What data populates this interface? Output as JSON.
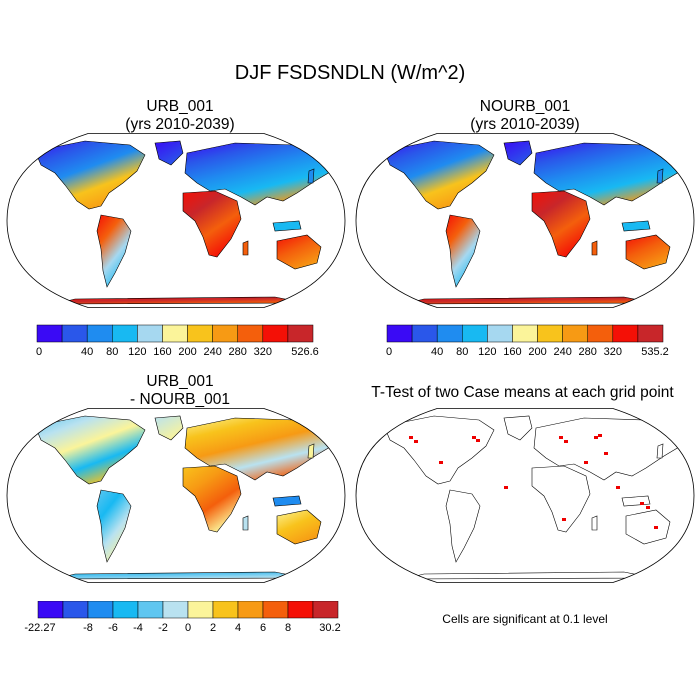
{
  "figure": {
    "title": "DJF FSDSNDLN (W/m^2)",
    "significance_note": "Cells are significant at 0.1 level"
  },
  "chart_data": [
    {
      "type": "heatmap",
      "projection": "robinson",
      "title_line1": "URB_001",
      "title_line2": "(yrs 2010-2039)",
      "variable": "FSDSNDLN",
      "units": "W/m^2",
      "colorbar": {
        "tick_labels": [
          "0",
          "40",
          "80",
          "120",
          "160",
          "200",
          "240",
          "280",
          "320",
          "526.6"
        ],
        "colors": [
          "#3a0af5",
          "#2a57ea",
          "#1f8cf0",
          "#18b9f2",
          "#a6d8f0",
          "#fbf49a",
          "#f8c31c",
          "#f79a14",
          "#f45f0c",
          "#f41006",
          "#c8262a"
        ]
      }
    },
    {
      "type": "heatmap",
      "projection": "robinson",
      "title_line1": "NOURB_001",
      "title_line2": "(yrs 2010-2039)",
      "variable": "FSDSNDLN",
      "units": "W/m^2",
      "colorbar": {
        "tick_labels": [
          "0",
          "40",
          "80",
          "120",
          "160",
          "200",
          "240",
          "280",
          "320",
          "535.2"
        ],
        "colors": [
          "#3a0af5",
          "#2a57ea",
          "#1f8cf0",
          "#18b9f2",
          "#a6d8f0",
          "#fbf49a",
          "#f8c31c",
          "#f79a14",
          "#f45f0c",
          "#f41006",
          "#c8262a"
        ]
      }
    },
    {
      "type": "heatmap",
      "projection": "robinson",
      "title_line1": "URB_001",
      "title_line2": "- NOURB_001",
      "variable": "FSDSNDLN difference",
      "units": "W/m^2",
      "colorbar": {
        "tick_labels": [
          "-22.27",
          "-8",
          "-6",
          "-4",
          "-2",
          "0",
          "2",
          "4",
          "6",
          "8",
          "30.2"
        ],
        "colors": [
          "#3a0af5",
          "#2a57ea",
          "#1f8cf0",
          "#18b9f2",
          "#5fc6f0",
          "#b9e2f0",
          "#fbf49a",
          "#f8c31c",
          "#f79a14",
          "#f45f0c",
          "#f41006",
          "#c8262a"
        ]
      }
    },
    {
      "type": "heatmap",
      "projection": "robinson",
      "title_line1": "T-Test of two Case means at each grid point",
      "title_line2": "",
      "significance_level": 0.1,
      "colorbar": {
        "tick_labels": [],
        "colors": [
          "#ee0000"
        ]
      }
    }
  ]
}
